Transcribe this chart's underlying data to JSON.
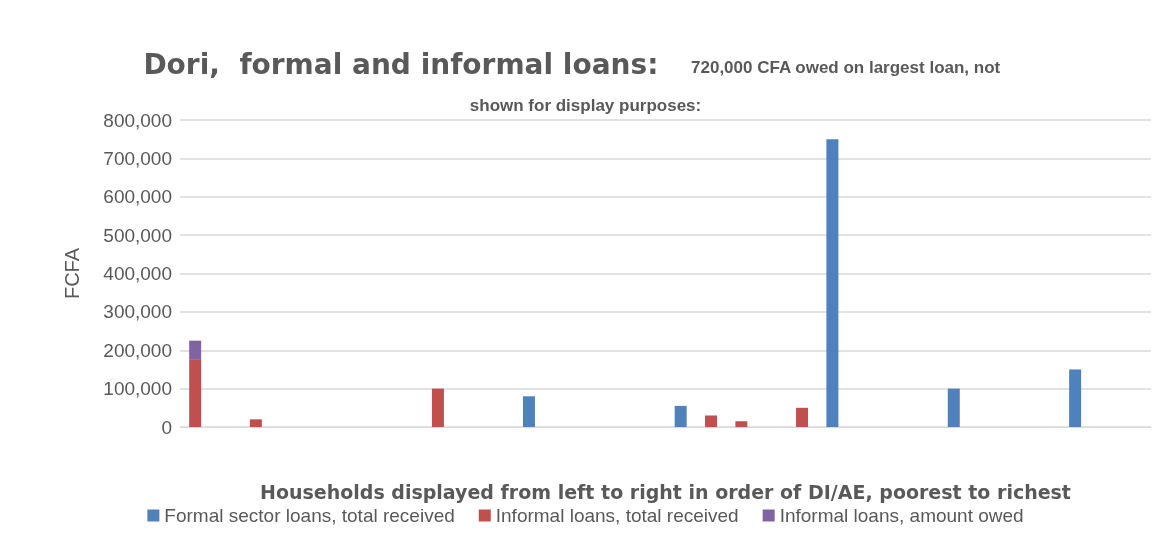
{
  "chart_data": {
    "type": "bar",
    "title": "Dori,  formal and informal loans:",
    "subtitle": "720,000 CFA owed on largest loan, not shown for display purposes:",
    "xlabel": "Households displayed from left to right in order of DI/AE, poorest to richest",
    "ylabel": "FCFA",
    "categories": [
      null,
      null,
      null,
      null,
      null,
      null,
      null,
      null,
      null,
      null,
      null,
      null,
      null,
      null,
      null,
      null,
      null,
      null,
      null,
      null,
      null,
      null,
      null,
      null,
      null,
      null,
      null,
      null,
      null,
      null,
      null,
      null
    ],
    "stacked": true,
    "series": [
      {
        "name": "Formal sector loans, total received",
        "color": "#4f81bd",
        "values": [
          null,
          null,
          null,
          null,
          null,
          null,
          null,
          null,
          null,
          null,
          null,
          80000,
          null,
          null,
          null,
          null,
          55000,
          null,
          null,
          null,
          null,
          750000,
          null,
          null,
          null,
          100000,
          null,
          null,
          null,
          150000,
          null,
          null
        ]
      },
      {
        "name": "Informal loans, total received",
        "color": "#c0504d",
        "values": [
          175000,
          null,
          20000,
          null,
          null,
          null,
          null,
          null,
          100000,
          null,
          null,
          null,
          null,
          null,
          null,
          null,
          null,
          30000,
          15000,
          null,
          50000,
          null,
          null,
          null,
          null,
          null,
          null,
          null,
          null,
          null,
          null,
          null
        ]
      },
      {
        "name": "Informal loans, amount owed",
        "color": "#8064a2",
        "values": [
          50000,
          null,
          null,
          null,
          null,
          null,
          null,
          null,
          null,
          null,
          null,
          null,
          null,
          null,
          null,
          null,
          null,
          null,
          null,
          null,
          null,
          null,
          null,
          null,
          null,
          null,
          null,
          null,
          null,
          null,
          null,
          null
        ]
      }
    ],
    "ylim": [
      0,
      800000
    ],
    "yticks": [
      0,
      {
        "value": 100000,
        "label": "100,000"
      },
      {
        "value": 200000,
        "label": "200,000"
      },
      {
        "value": 300000,
        "label": "300,000"
      },
      {
        "value": 400000,
        "label": "400,000"
      },
      {
        "value": 500000,
        "label": "500,000"
      },
      {
        "value": 600000,
        "label": "600,000"
      },
      {
        "value": 700000,
        "label": "700,000"
      },
      {
        "value": 800000,
        "label": "800,000"
      }
    ],
    "grid": "y",
    "legend": "bottom"
  }
}
